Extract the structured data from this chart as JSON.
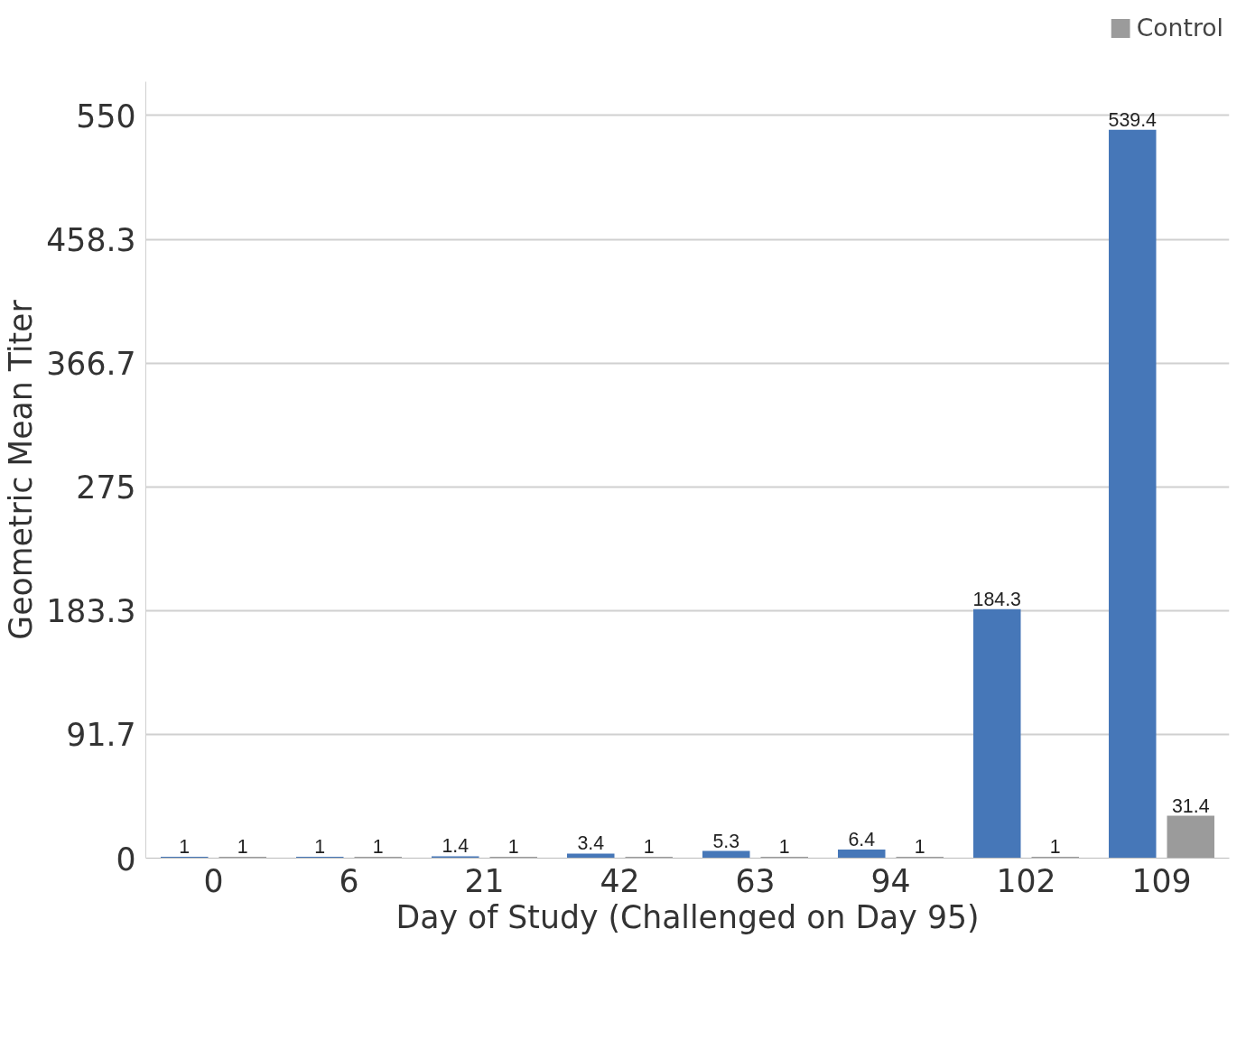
{
  "chart_data": {
    "type": "bar",
    "categories": [
      "0",
      "6",
      "21",
      "42",
      "63",
      "94",
      "102",
      "109"
    ],
    "series": [
      {
        "color": "#4677b8",
        "values": [
          1,
          1,
          1.4,
          3.4,
          5.3,
          6.4,
          184.3,
          539.4
        ]
      },
      {
        "name": "Control",
        "color": "#9b9b9b",
        "values": [
          1,
          1,
          1,
          1,
          1,
          1,
          1,
          31.4
        ]
      }
    ],
    "xlabel": "Day of Study (Challenged on Day 95)",
    "ylabel": "Geometric Mean Titer",
    "ylim": [
      0,
      575
    ],
    "yticks": [
      0,
      91.7,
      183.3,
      275,
      366.7,
      458.3,
      550
    ],
    "data_labels": true,
    "grid": "y",
    "legend": "top right"
  }
}
